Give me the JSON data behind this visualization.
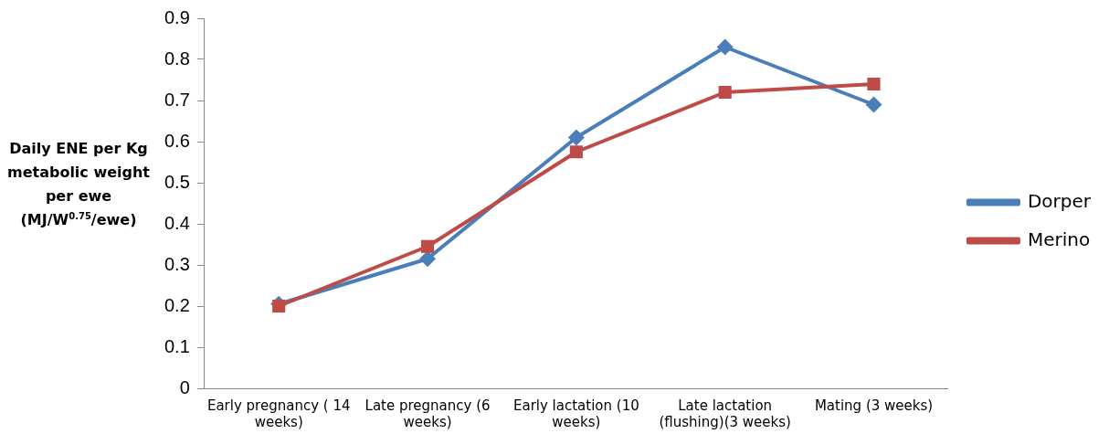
{
  "chart_data": {
    "type": "line",
    "ylabel": "Daily ENE per Kg metabolic weight per ewe (MJ/W$^{0.75}$/ewe)",
    "categories": [
      "Early pregnancy ( 14 weeks)",
      "Late pregnancy (6 weeks)",
      "Early lactation (10 weeks)",
      "Late lactation (flushing)(3 weeks)",
      "Mating (3 weeks)"
    ],
    "series": [
      {
        "name": "Dorper",
        "color": "#4a7ebb",
        "marker": "diamond",
        "values": [
          0.205,
          0.315,
          0.61,
          0.83,
          0.69
        ]
      },
      {
        "name": "Merino",
        "color": "#be4b48",
        "marker": "square",
        "values": [
          0.2,
          0.345,
          0.575,
          0.72,
          0.74
        ]
      }
    ],
    "ylim": [
      0,
      0.9
    ],
    "yticks": [
      0,
      0.1,
      0.2,
      0.3,
      0.4,
      0.5,
      0.6,
      0.7,
      0.8,
      0.9
    ],
    "grid": false,
    "legend": "right",
    "line_style": "solid"
  }
}
